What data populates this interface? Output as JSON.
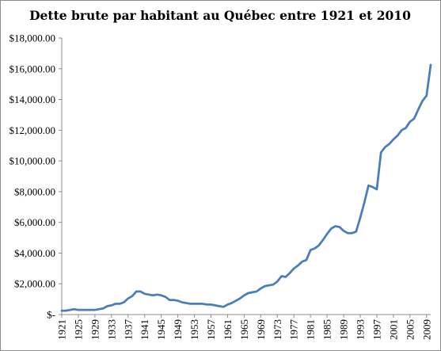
{
  "chart_data": {
    "type": "line",
    "title": "Dette brute par habitant au Québec entre 1921 et 2010",
    "xlabel": "",
    "ylabel": "",
    "xlim": [
      1921,
      2010
    ],
    "ylim": [
      0,
      18000
    ],
    "y_tick_labels": [
      "$-",
      "$2,000.00",
      "$4,000.00",
      "$6,000.00",
      "$8,000.00",
      "$10,000.00",
      "$12,000.00",
      "$14,000.00",
      "$16,000.00",
      "$18,000.00"
    ],
    "x_tick_labels": [
      "1921",
      "1925",
      "1929",
      "1933",
      "1937",
      "1941",
      "1945",
      "1949",
      "1953",
      "1957",
      "1961",
      "1965",
      "1969",
      "1973",
      "1977",
      "1981",
      "1985",
      "1989",
      "1993",
      "1997",
      "2001",
      "2005",
      "2009"
    ],
    "grid": false,
    "legend": "none",
    "series": [
      {
        "color": "#4a7ebb",
        "x": [
          1921,
          1922,
          1923,
          1924,
          1925,
          1926,
          1927,
          1928,
          1929,
          1930,
          1931,
          1932,
          1933,
          1934,
          1935,
          1936,
          1937,
          1938,
          1939,
          1940,
          1941,
          1942,
          1943,
          1944,
          1945,
          1946,
          1947,
          1948,
          1949,
          1950,
          1951,
          1952,
          1953,
          1954,
          1955,
          1956,
          1957,
          1958,
          1959,
          1960,
          1961,
          1962,
          1963,
          1964,
          1965,
          1966,
          1967,
          1968,
          1969,
          1970,
          1971,
          1972,
          1973,
          1974,
          1975,
          1976,
          1977,
          1978,
          1979,
          1980,
          1981,
          1982,
          1983,
          1984,
          1985,
          1986,
          1987,
          1988,
          1989,
          1990,
          1991,
          1992,
          1993,
          1994,
          1995,
          1996,
          1997,
          1998,
          1999,
          2000,
          2001,
          2002,
          2003,
          2004,
          2005,
          2006,
          2007,
          2008,
          2009,
          2010
        ],
        "y": [
          250,
          250,
          300,
          350,
          300,
          300,
          300,
          300,
          300,
          350,
          400,
          550,
          600,
          700,
          700,
          800,
          1050,
          1200,
          1500,
          1500,
          1350,
          1300,
          1250,
          1300,
          1250,
          1150,
          950,
          950,
          900,
          800,
          750,
          700,
          700,
          700,
          700,
          650,
          650,
          600,
          550,
          500,
          650,
          750,
          900,
          1050,
          1250,
          1400,
          1450,
          1500,
          1700,
          1850,
          1900,
          1950,
          2150,
          2500,
          2450,
          2700,
          3000,
          3200,
          3450,
          3550,
          4200,
          4300,
          4500,
          4850,
          5250,
          5600,
          5750,
          5700,
          5450,
          5300,
          5300,
          5400,
          6300,
          7300,
          8400,
          8300,
          8150,
          10550,
          10900,
          11100,
          11400,
          11650,
          12000,
          12150,
          12550,
          12750,
          13350,
          13900,
          14250,
          16250
        ]
      }
    ]
  }
}
